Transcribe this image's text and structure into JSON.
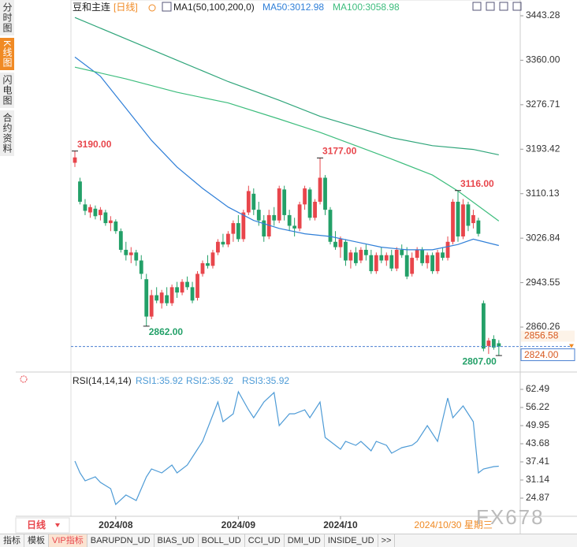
{
  "sidebar": {
    "tabs": [
      "分时图",
      "K线图",
      "闪电图",
      "合约资料"
    ],
    "active": 1
  },
  "chart_data": [
    {
      "type": "candlestick",
      "title": "豆和主连",
      "period": "[日线]",
      "indicator": "MA1(50,100,200,0)",
      "up_color": "#e8464c",
      "down_color": "#23a068",
      "open": [
        3168,
        3133,
        3090,
        3075,
        3082,
        3070,
        3075,
        3055,
        3058,
        3040,
        3005,
        2995,
        3000,
        2985,
        2950,
        2880,
        2920,
        2905,
        2920,
        2905,
        2935,
        2925,
        2945,
        2935,
        2915,
        2960,
        2980,
        2975,
        3000,
        3020,
        3015,
        3035,
        3055,
        3025,
        3075,
        3110,
        3080,
        3060,
        3030,
        3070,
        3060,
        3118,
        3070,
        3050,
        3045,
        3090,
        3118,
        3065,
        3095,
        3140,
        3080,
        3020,
        3010,
        3020,
        2985,
        3000,
        2985,
        3005,
        2995,
        2965,
        2995,
        2985,
        2995,
        2970,
        3005,
        2995,
        2960,
        2990,
        3005,
        2980,
        2995,
        2965,
        3000,
        2990,
        3020,
        3095,
        3030,
        3090,
        3055,
        3060,
        2905,
        2825,
        2838,
        2830
      ],
      "high": [
        3190,
        3140,
        3100,
        3090,
        3088,
        3085,
        3080,
        3068,
        3062,
        3045,
        3020,
        3010,
        3005,
        2995,
        2960,
        2930,
        2935,
        2930,
        2935,
        2940,
        2945,
        2950,
        2955,
        2945,
        2965,
        2985,
        2995,
        3005,
        3025,
        3035,
        3040,
        3060,
        3070,
        3080,
        3125,
        3120,
        3095,
        3070,
        3080,
        3085,
        3125,
        3125,
        3080,
        3065,
        3095,
        3125,
        3122,
        3100,
        3177,
        3145,
        3085,
        3040,
        3030,
        3025,
        3005,
        3010,
        3010,
        3015,
        3005,
        3000,
        3010,
        3000,
        3005,
        3010,
        3015,
        3010,
        3000,
        3010,
        3010,
        3000,
        3000,
        3005,
        3010,
        3030,
        3100,
        3116,
        3100,
        3095,
        3080,
        3065,
        2910,
        2840,
        2845,
        2836
      ],
      "low": [
        3160,
        3090,
        3070,
        3065,
        3062,
        3060,
        3050,
        3040,
        3035,
        3000,
        2985,
        2980,
        2975,
        2950,
        2862,
        2875,
        2905,
        2895,
        2900,
        2900,
        2915,
        2920,
        2930,
        2905,
        2910,
        2955,
        2970,
        2970,
        2995,
        3010,
        3010,
        3020,
        3020,
        3020,
        3070,
        3070,
        3050,
        3020,
        3025,
        3050,
        3055,
        3060,
        3040,
        3030,
        3040,
        3080,
        3060,
        3060,
        3090,
        3070,
        3015,
        3005,
        2990,
        2975,
        2970,
        2975,
        2980,
        2985,
        2960,
        2960,
        2980,
        2975,
        2965,
        2965,
        2990,
        2950,
        2955,
        2985,
        2975,
        2970,
        2960,
        2960,
        2985,
        2985,
        3015,
        3020,
        3025,
        3040,
        3045,
        3030,
        2815,
        2810,
        2818,
        2807
      ],
      "close": [
        3178,
        3095,
        3078,
        3085,
        3068,
        3080,
        3055,
        3060,
        3040,
        3005,
        2995,
        3000,
        2985,
        2960,
        2880,
        2920,
        2910,
        2925,
        2905,
        2935,
        2925,
        2945,
        2935,
        2910,
        2960,
        2980,
        2975,
        3000,
        3020,
        3015,
        3035,
        3055,
        3025,
        3075,
        3115,
        3080,
        3060,
        3030,
        3070,
        3060,
        3120,
        3070,
        3050,
        3045,
        3090,
        3120,
        3065,
        3095,
        3140,
        3080,
        3020,
        3010,
        3025,
        2985,
        3000,
        2980,
        3005,
        2995,
        2965,
        2995,
        2985,
        2995,
        2970,
        3005,
        2995,
        2955,
        2990,
        3005,
        2980,
        2995,
        2965,
        3000,
        2990,
        3020,
        3095,
        3030,
        3090,
        3050,
        3070,
        3035,
        2820,
        2835,
        2822,
        2824
      ],
      "series": [
        {
          "name": "MA50:3012.98",
          "color": "#2f7fd8",
          "x": [
            0,
            5,
            10,
            15,
            20,
            25,
            30,
            35,
            40,
            45,
            50,
            55,
            60,
            65,
            70,
            75,
            78,
            83
          ],
          "values": [
            3366,
            3330,
            3270,
            3210,
            3160,
            3120,
            3085,
            3060,
            3045,
            3035,
            3030,
            3020,
            3010,
            3005,
            3005,
            3015,
            3025,
            3013
          ]
        },
        {
          "name": "MA100:3058.98",
          "color": "#3dbd7d",
          "x": [
            0,
            10,
            20,
            30,
            40,
            48,
            55,
            62,
            70,
            75,
            80,
            83
          ],
          "values": [
            3347,
            3325,
            3300,
            3280,
            3250,
            3225,
            3200,
            3175,
            3145,
            3115,
            3080,
            3059
          ]
        },
        {
          "color": "#2fa57a",
          "x": [
            0,
            10,
            20,
            30,
            40,
            48,
            55,
            62,
            70,
            78,
            83
          ],
          "values": [
            3440,
            3400,
            3360,
            3320,
            3285,
            3255,
            3235,
            3215,
            3200,
            3193,
            3183
          ]
        }
      ],
      "highlights": [
        {
          "x": 0,
          "value": 3190,
          "label": "3190.00",
          "color": "#e8464c"
        },
        {
          "x": 48,
          "value": 3177,
          "label": "3177.00",
          "color": "#e8464c"
        },
        {
          "x": 75,
          "value": 3116,
          "label": "3116.00",
          "color": "#e8464c"
        },
        {
          "x": 14,
          "value": 2862,
          "label": "2862.00",
          "color": "#23a068"
        },
        {
          "x": 83,
          "value": 2807,
          "label": "2807.00",
          "color": "#23a068"
        }
      ],
      "last_price": {
        "value": 2824,
        "label": "2824.00"
      },
      "cursor_price": 2856.58,
      "ylim": [
        2779.1,
        3461
      ],
      "yticks": [
        3443.28,
        {
          "value": 3360,
          "label": "3360.00"
        },
        3276.71,
        3193.42,
        3110.13,
        3026.84,
        2943.55,
        2860.26
      ]
    },
    {
      "type": "line",
      "title": "RSI(14,14,14)",
      "legend": [
        {
          "name": "RSI1:35.92",
          "color": "#4e9bd6"
        },
        {
          "name": "RSI2:35.92",
          "color": "#4e9bd6"
        },
        {
          "name": "RSI3:35.92",
          "color": "#4e9bd6"
        }
      ],
      "series": [
        {
          "color": "#4e9bd6",
          "x": [
            0,
            1,
            2,
            4,
            5,
            7,
            8,
            10,
            12,
            14,
            15,
            17,
            19,
            20,
            22,
            24,
            25,
            28,
            29,
            31,
            32,
            34,
            35,
            37,
            39,
            40,
            42,
            43,
            45,
            46,
            48,
            49,
            50,
            52,
            53,
            55,
            56,
            58,
            59,
            61,
            62,
            64,
            66,
            67,
            69,
            71,
            73,
            74,
            76,
            78,
            79,
            80,
            82,
            83
          ],
          "values": [
            37.68,
            33.59,
            30.87,
            32.23,
            30.32,
            28.14,
            22.69,
            25.96,
            24.05,
            32.23,
            34.95,
            33.59,
            36.32,
            33.59,
            36.32,
            41.77,
            44.5,
            58.13,
            51.31,
            54.04,
            61.67,
            55.4,
            52.68,
            58.13,
            61.4,
            49.95,
            54.04,
            54.04,
            55.4,
            52.68,
            58.13,
            45.86,
            44.5,
            41.77,
            44.5,
            43.13,
            44.5,
            41.23,
            44.5,
            43.13,
            40.41,
            42.32,
            43.13,
            44.5,
            49.95,
            44.5,
            59.49,
            52.68,
            56.77,
            51.31,
            33.59,
            34.95,
            35.77,
            35.92
          ]
        }
      ],
      "ylim": [
        18.6,
        66.85
      ],
      "yticks": [
        62.49,
        56.22,
        49.95,
        43.68,
        37.41,
        31.14,
        24.87
      ],
      "xticks": [
        {
          "value": 8,
          "label": "2024/08"
        },
        {
          "value": 32,
          "label": "2024/09"
        },
        {
          "value": 52,
          "label": "2024/10"
        }
      ],
      "current_date": "2024/10/30 星期三"
    }
  ],
  "toolbar": {
    "period": "日线",
    "tabs": [
      "指标",
      "模板",
      "VIP指标",
      "BARUPDN_UD",
      "BIAS_UD",
      "BOLL_UD",
      "CCI_UD",
      "DMI_UD",
      "INSIDE_UD",
      ">>"
    ],
    "active": 2
  },
  "watermark": "FX678"
}
